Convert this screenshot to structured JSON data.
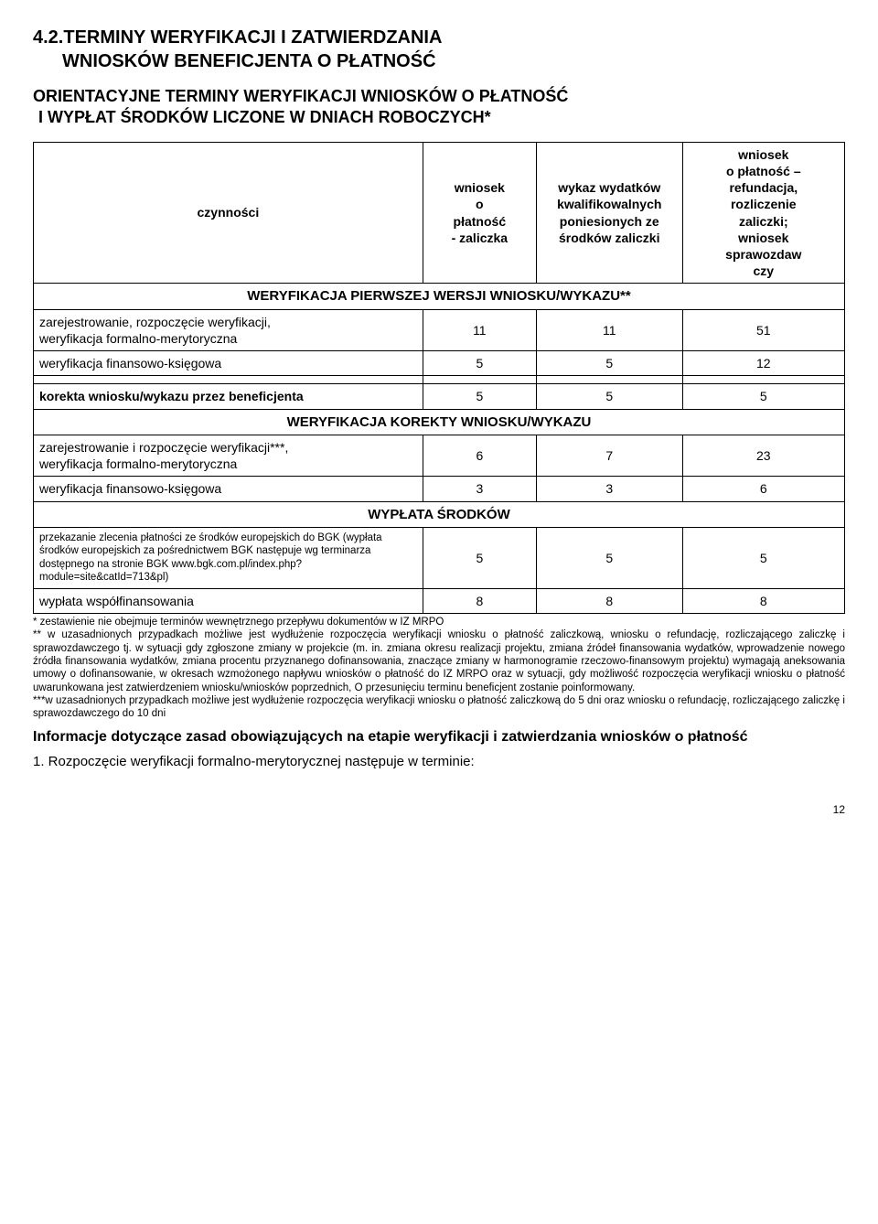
{
  "title": {
    "line1": "4.2.TERMINY WERYFIKACJI I ZATWIERDZANIA",
    "line2": "WNIOSKÓW BENEFICJENTA O PŁATNOŚĆ"
  },
  "subtitle": {
    "line1": "ORIENTACYJNE TERMINY WERYFIKACJI WNIOSKÓW O PŁATNOŚĆ",
    "line2": "I WYPŁAT ŚRODKÓW LICZONE W DNIACH ROBOCZYCH*"
  },
  "headers": {
    "col1": "czynności",
    "col2": "wniosek\no\npłatność\n- zaliczka",
    "col3": "wykaz wydatków\nkwalifikowalnych\nponiesionych ze\nśrodków zaliczki",
    "col4": "wniosek\no płatność –\nrefundacja,\nrozliczenie\nzaliczki;\nwniosek\nsprawozdaw\nczy"
  },
  "section1": "WERYFIKACJA PIERWSZEJ WERSJI WNIOSKU/WYKAZU**",
  "rows1": [
    {
      "label": "zarejestrowanie, rozpoczęcie weryfikacji,\nweryfikacja formalno-merytoryczna",
      "v": [
        "11",
        "11",
        "51"
      ]
    },
    {
      "label": "weryfikacja finansowo-księgowa",
      "v": [
        "5",
        "5",
        "12"
      ]
    }
  ],
  "blankRow": {
    "label": "",
    "v": [
      "",
      "",
      ""
    ]
  },
  "korekta": {
    "label": "korekta wniosku/wykazu przez beneficjenta",
    "v": [
      "5",
      "5",
      "5"
    ]
  },
  "section2": "WERYFIKACJA KOREKTY WNIOSKU/WYKAZU",
  "rows2": [
    {
      "label": "zarejestrowanie i rozpoczęcie weryfikacji***,\nweryfikacja formalno-merytoryczna",
      "v": [
        "6",
        "7",
        "23"
      ]
    },
    {
      "label": "weryfikacja finansowo-księgowa",
      "v": [
        "3",
        "3",
        "6"
      ]
    }
  ],
  "section3": "WYPŁATA ŚRODKÓW",
  "rows3": [
    {
      "label": "przekazanie zlecenia płatności ze środków europejskich do BGK (wypłata środków europejskich za pośrednictwem BGK następuje wg terminarza dostępnego na stronie BGK www.bgk.com.pl/index.php?module=site&catId=713&pl)",
      "v": [
        "5",
        "5",
        "5"
      ]
    },
    {
      "label": "wypłata współfinansowania",
      "v": [
        "8",
        "8",
        "8"
      ]
    }
  ],
  "footnotes": {
    "f1": "* zestawienie nie obejmuje terminów wewnętrznego przepływu dokumentów w IZ MRPO",
    "f2": "** w uzasadnionych przypadkach możliwe jest wydłużenie rozpoczęcia weryfikacji wniosku o płatność zaliczkową, wniosku o refundację, rozliczającego zaliczkę i sprawozdawczego tj. w sytuacji gdy zgłoszone zmiany w projekcie (m. in. zmiana okresu realizacji projektu, zmiana źródeł finansowania wydatków, wprowadzenie nowego źródła finansowania wydatków, zmiana procentu przyznanego dofinansowania, znaczące zmiany w harmonogramie rzeczowo-finansowym projektu) wymagają aneksowania umowy o dofinansowanie, w okresach wzmożonego napływu wniosków o płatność do IZ MRPO oraz w sytuacji, gdy możliwość rozpoczęcia weryfikacji wniosku o płatność uwarunkowana jest zatwierdzeniem wniosku/wniosków poprzednich, O przesunięciu terminu beneficjent zostanie poinformowany.",
    "f3": "***w uzasadnionych przypadkach możliwe jest wydłużenie rozpoczęcia weryfikacji wniosku o płatność zaliczkową do 5 dni oraz wniosku o refundację, rozliczającego zaliczkę i sprawozdawczego do 10 dni"
  },
  "infoHead": "Informacje dotyczące zasad obowiązujących na etapie weryfikacji i zatwierdzania wniosków o płatność",
  "listItem1": "1. Rozpoczęcie weryfikacji formalno-merytorycznej następuje w terminie:",
  "pageNum": "12"
}
